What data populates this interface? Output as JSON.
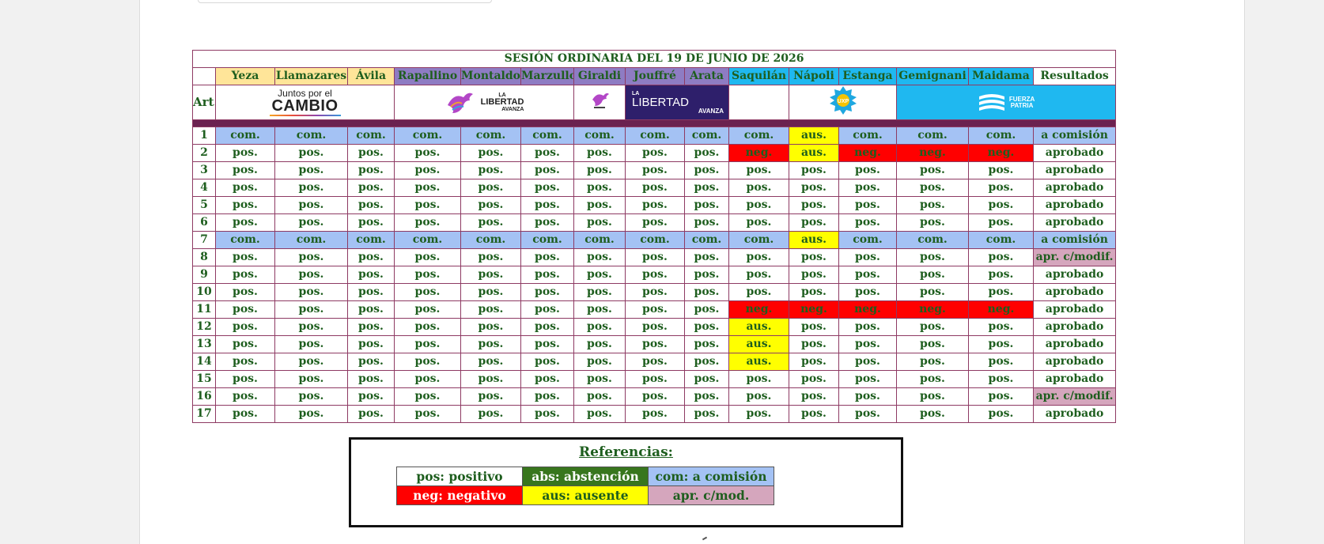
{
  "session_title": "SESIÓN ORDINARIA DEL 19 DE JUNIO DE 2026",
  "art_label": "Art.",
  "results_label": "Resultados",
  "councillors": [
    {
      "name": "Yeza",
      "bloc": "jxc"
    },
    {
      "name": "Llamazares",
      "bloc": "jxc"
    },
    {
      "name": "Ávila",
      "bloc": "jxc"
    },
    {
      "name": "Rapallino",
      "bloc": "lla"
    },
    {
      "name": "Montaldo",
      "bloc": "lla"
    },
    {
      "name": "Marzullo",
      "bloc": "lla"
    },
    {
      "name": "Giraldi",
      "bloc": "lla"
    },
    {
      "name": "Jouffré",
      "bloc": "lla"
    },
    {
      "name": "Arata",
      "bloc": "lla"
    },
    {
      "name": "Saquilán",
      "bloc": "uxp"
    },
    {
      "name": "Nápoli",
      "bloc": "uxp"
    },
    {
      "name": "Estanga",
      "bloc": "uxp"
    },
    {
      "name": "Gemignani",
      "bloc": "uxp"
    },
    {
      "name": "Maidama",
      "bloc": "uxp"
    }
  ],
  "logos": {
    "jxc": {
      "line1": "Juntos por el",
      "line2": "CAMBIO",
      "icon": "jxc-logo"
    },
    "lla_main": {
      "small": "LA",
      "big": "LIBERTAD",
      "sub": "AVANZA",
      "icon": "lion-eagle-icon"
    },
    "lla_small": {
      "icon": "lla-mini-logo"
    },
    "lla_navy": {
      "small": "LA",
      "big": "LIBERTAD",
      "sub": "AVANZA",
      "icon": "lla-navy-logo"
    },
    "uxp": {
      "text": "UXP",
      "icon": "sun-badge-icon"
    },
    "fuerza": {
      "line1": "FUERZA",
      "line2": "PATRIA",
      "icon": "flag-icon"
    }
  },
  "votes": [
    {
      "art": "1",
      "v": [
        "com.",
        "com.",
        "com.",
        "com.",
        "com.",
        "com.",
        "com.",
        "com.",
        "com.",
        "com.",
        "aus.",
        "com.",
        "com.",
        "com."
      ],
      "result": "a comisión"
    },
    {
      "art": "2",
      "v": [
        "pos.",
        "pos.",
        "pos.",
        "pos.",
        "pos.",
        "pos.",
        "pos.",
        "pos.",
        "pos.",
        "neg.",
        "aus.",
        "neg.",
        "neg.",
        "neg."
      ],
      "result": "aprobado"
    },
    {
      "art": "3",
      "v": [
        "pos.",
        "pos.",
        "pos.",
        "pos.",
        "pos.",
        "pos.",
        "pos.",
        "pos.",
        "pos.",
        "pos.",
        "pos.",
        "pos.",
        "pos.",
        "pos."
      ],
      "result": "aprobado"
    },
    {
      "art": "4",
      "v": [
        "pos.",
        "pos.",
        "pos.",
        "pos.",
        "pos.",
        "pos.",
        "pos.",
        "pos.",
        "pos.",
        "pos.",
        "pos.",
        "pos.",
        "pos.",
        "pos."
      ],
      "result": "aprobado"
    },
    {
      "art": "5",
      "v": [
        "pos.",
        "pos.",
        "pos.",
        "pos.",
        "pos.",
        "pos.",
        "pos.",
        "pos.",
        "pos.",
        "pos.",
        "pos.",
        "pos.",
        "pos.",
        "pos."
      ],
      "result": "aprobado"
    },
    {
      "art": "6",
      "v": [
        "pos.",
        "pos.",
        "pos.",
        "pos.",
        "pos.",
        "pos.",
        "pos.",
        "pos.",
        "pos.",
        "pos.",
        "pos.",
        "pos.",
        "pos.",
        "pos."
      ],
      "result": "aprobado"
    },
    {
      "art": "7",
      "v": [
        "com.",
        "com.",
        "com.",
        "com.",
        "com.",
        "com.",
        "com.",
        "com.",
        "com.",
        "com.",
        "aus.",
        "com.",
        "com.",
        "com."
      ],
      "result": "a comisión"
    },
    {
      "art": "8",
      "v": [
        "pos.",
        "pos.",
        "pos.",
        "pos.",
        "pos.",
        "pos.",
        "pos.",
        "pos.",
        "pos.",
        "pos.",
        "pos.",
        "pos.",
        "pos.",
        "pos."
      ],
      "result": "apr. c/modif."
    },
    {
      "art": "9",
      "v": [
        "pos.",
        "pos.",
        "pos.",
        "pos.",
        "pos.",
        "pos.",
        "pos.",
        "pos.",
        "pos.",
        "pos.",
        "pos.",
        "pos.",
        "pos.",
        "pos."
      ],
      "result": "aprobado"
    },
    {
      "art": "10",
      "v": [
        "pos.",
        "pos.",
        "pos.",
        "pos.",
        "pos.",
        "pos.",
        "pos.",
        "pos.",
        "pos.",
        "pos.",
        "pos.",
        "pos.",
        "pos.",
        "pos."
      ],
      "result": "aprobado"
    },
    {
      "art": "11",
      "v": [
        "pos.",
        "pos.",
        "pos.",
        "pos.",
        "pos.",
        "pos.",
        "pos.",
        "pos.",
        "pos.",
        "neg.",
        "neg.",
        "neg.",
        "neg.",
        "neg."
      ],
      "result": "aprobado"
    },
    {
      "art": "12",
      "v": [
        "pos.",
        "pos.",
        "pos.",
        "pos.",
        "pos.",
        "pos.",
        "pos.",
        "pos.",
        "pos.",
        "aus.",
        "pos.",
        "pos.",
        "pos.",
        "pos."
      ],
      "result": "aprobado"
    },
    {
      "art": "13",
      "v": [
        "pos.",
        "pos.",
        "pos.",
        "pos.",
        "pos.",
        "pos.",
        "pos.",
        "pos.",
        "pos.",
        "aus.",
        "pos.",
        "pos.",
        "pos.",
        "pos."
      ],
      "result": "aprobado"
    },
    {
      "art": "14",
      "v": [
        "pos.",
        "pos.",
        "pos.",
        "pos.",
        "pos.",
        "pos.",
        "pos.",
        "pos.",
        "pos.",
        "aus.",
        "pos.",
        "pos.",
        "pos.",
        "pos."
      ],
      "result": "aprobado"
    },
    {
      "art": "15",
      "v": [
        "pos.",
        "pos.",
        "pos.",
        "pos.",
        "pos.",
        "pos.",
        "pos.",
        "pos.",
        "pos.",
        "pos.",
        "pos.",
        "pos.",
        "pos.",
        "pos."
      ],
      "result": "aprobado"
    },
    {
      "art": "16",
      "v": [
        "pos.",
        "pos.",
        "pos.",
        "pos.",
        "pos.",
        "pos.",
        "pos.",
        "pos.",
        "pos.",
        "pos.",
        "pos.",
        "pos.",
        "pos.",
        "pos."
      ],
      "result": "apr. c/modif."
    },
    {
      "art": "17",
      "v": [
        "pos.",
        "pos.",
        "pos.",
        "pos.",
        "pos.",
        "pos.",
        "pos.",
        "pos.",
        "pos.",
        "pos.",
        "pos.",
        "pos.",
        "pos.",
        "pos."
      ],
      "result": "aprobado"
    }
  ],
  "legend": {
    "title": "Referencias:",
    "rows": [
      [
        {
          "key": "pos",
          "label": "pos: positivo"
        },
        {
          "key": "abs",
          "label": "abs: abstención"
        },
        {
          "key": "com",
          "label": "com: a comisión"
        }
      ],
      [
        {
          "key": "neg",
          "label": "neg: negativo"
        },
        {
          "key": "aus",
          "label": "aus: ausente"
        },
        {
          "key": "mod",
          "label": "apr. c/mod."
        }
      ]
    ]
  },
  "colors": {
    "com": "#a4c2f4",
    "aus": "#ffff00",
    "neg": "#ff0000",
    "pos": "#ffffff",
    "abs": "#38761d",
    "mod": "#d5a6bd",
    "band": "#6b2250",
    "text_green": "#1e5e1e"
  }
}
